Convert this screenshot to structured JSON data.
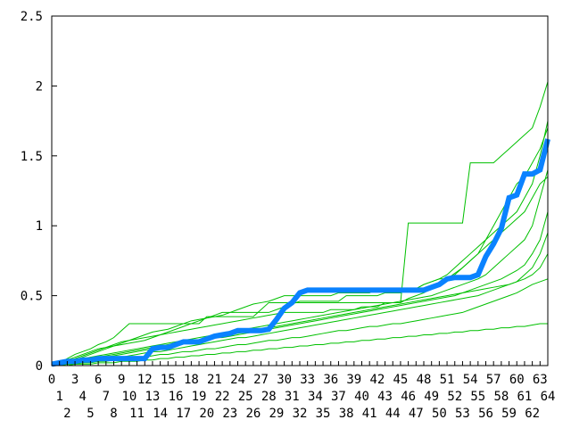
{
  "chart_data": {
    "type": "line",
    "title": "",
    "xlabel": "",
    "ylabel": "",
    "xlim": [
      0,
      64
    ],
    "ylim": [
      0,
      2.5
    ],
    "x_ticks": [
      0,
      1,
      2,
      3,
      4,
      5,
      6,
      7,
      8,
      9,
      10,
      11,
      12,
      13,
      14,
      15,
      16,
      17,
      18,
      19,
      20,
      21,
      22,
      23,
      24,
      25,
      26,
      27,
      28,
      29,
      30,
      31,
      32,
      33,
      34,
      35,
      36,
      37,
      38,
      39,
      40,
      41,
      42,
      43,
      44,
      45,
      46,
      47,
      48,
      49,
      50,
      51,
      52,
      53,
      54,
      55,
      56,
      57,
      58,
      59,
      60,
      61,
      62,
      63,
      64
    ],
    "y_ticks": [
      "0",
      "0.5",
      "1",
      "1.5",
      "2",
      "2.5"
    ],
    "y_tick_values": [
      0,
      0.5,
      1,
      1.5,
      2,
      2.5
    ],
    "grid": false,
    "legend": "none",
    "colors": {
      "background_series": "#00c000",
      "highlight_series": "#0a82ff",
      "axis": "#000000"
    },
    "highlight_series": {
      "values": [
        0.01,
        0.02,
        0.03,
        0.03,
        0.04,
        0.04,
        0.05,
        0.05,
        0.05,
        0.05,
        0.05,
        0.05,
        0.05,
        0.12,
        0.13,
        0.13,
        0.15,
        0.17,
        0.17,
        0.17,
        0.19,
        0.21,
        0.22,
        0.23,
        0.25,
        0.25,
        0.25,
        0.25,
        0.26,
        0.33,
        0.41,
        0.45,
        0.52,
        0.54,
        0.54,
        0.54,
        0.54,
        0.54,
        0.54,
        0.54,
        0.54,
        0.54,
        0.54,
        0.54,
        0.54,
        0.54,
        0.54,
        0.54,
        0.54,
        0.56,
        0.58,
        0.62,
        0.63,
        0.63,
        0.63,
        0.65,
        0.78,
        0.87,
        0.98,
        1.2,
        1.22,
        1.37,
        1.37,
        1.4,
        1.62
      ]
    },
    "series": [
      {
        "values": [
          0,
          0.02,
          0.05,
          0.08,
          0.1,
          0.12,
          0.15,
          0.17,
          0.2,
          0.25,
          0.3,
          0.3,
          0.3,
          0.3,
          0.3,
          0.3,
          0.3,
          0.3,
          0.3,
          0.3,
          0.35,
          0.35,
          0.35,
          0.35,
          0.35,
          0.35,
          0.35,
          0.4,
          0.45,
          0.45,
          0.45,
          0.45,
          0.45,
          0.45,
          0.45,
          0.45,
          0.45,
          0.45,
          0.45,
          0.45,
          0.45,
          0.45,
          0.45,
          0.45,
          0.45,
          0.45,
          1.02,
          1.02,
          1.02,
          1.02,
          1.02,
          1.02,
          1.02,
          1.02,
          1.45,
          1.45,
          1.45,
          1.45,
          1.5,
          1.55,
          1.6,
          1.65,
          1.7,
          1.85,
          2.03
        ]
      },
      {
        "values": [
          0,
          0.01,
          0.02,
          0.04,
          0.06,
          0.08,
          0.1,
          0.12,
          0.14,
          0.16,
          0.18,
          0.2,
          0.22,
          0.24,
          0.25,
          0.26,
          0.28,
          0.3,
          0.32,
          0.33,
          0.34,
          0.35,
          0.36,
          0.38,
          0.4,
          0.42,
          0.44,
          0.45,
          0.46,
          0.48,
          0.5,
          0.5,
          0.5,
          0.5,
          0.5,
          0.5,
          0.5,
          0.52,
          0.52,
          0.52,
          0.52,
          0.52,
          0.55,
          0.55,
          0.55,
          0.55,
          0.55,
          0.55,
          0.58,
          0.6,
          0.62,
          0.62,
          0.65,
          0.7,
          0.75,
          0.8,
          0.9,
          0.95,
          1.0,
          1.05,
          1.1,
          1.2,
          1.3,
          1.5,
          1.75
        ]
      },
      {
        "values": [
          0,
          0.01,
          0.02,
          0.03,
          0.05,
          0.06,
          0.07,
          0.08,
          0.09,
          0.1,
          0.11,
          0.12,
          0.13,
          0.14,
          0.15,
          0.16,
          0.17,
          0.18,
          0.19,
          0.2,
          0.21,
          0.22,
          0.23,
          0.24,
          0.25,
          0.26,
          0.27,
          0.28,
          0.29,
          0.3,
          0.31,
          0.32,
          0.33,
          0.34,
          0.35,
          0.36,
          0.37,
          0.38,
          0.39,
          0.4,
          0.41,
          0.42,
          0.43,
          0.44,
          0.45,
          0.46,
          0.47,
          0.48,
          0.49,
          0.5,
          0.52,
          0.54,
          0.56,
          0.58,
          0.6,
          0.62,
          0.65,
          0.7,
          0.75,
          0.8,
          0.85,
          0.9,
          1.0,
          1.2,
          1.4
        ]
      },
      {
        "values": [
          0,
          0,
          0.01,
          0.02,
          0.03,
          0.04,
          0.05,
          0.06,
          0.07,
          0.08,
          0.09,
          0.1,
          0.11,
          0.12,
          0.13,
          0.14,
          0.15,
          0.16,
          0.17,
          0.18,
          0.19,
          0.2,
          0.2,
          0.21,
          0.22,
          0.23,
          0.24,
          0.25,
          0.26,
          0.27,
          0.28,
          0.29,
          0.3,
          0.31,
          0.32,
          0.33,
          0.34,
          0.35,
          0.36,
          0.37,
          0.38,
          0.39,
          0.4,
          0.41,
          0.42,
          0.43,
          0.44,
          0.45,
          0.46,
          0.47,
          0.48,
          0.49,
          0.5,
          0.52,
          0.54,
          0.56,
          0.58,
          0.6,
          0.62,
          0.65,
          0.68,
          0.72,
          0.8,
          0.9,
          1.1
        ]
      },
      {
        "values": [
          0,
          0.01,
          0.01,
          0.02,
          0.02,
          0.03,
          0.03,
          0.04,
          0.05,
          0.06,
          0.07,
          0.08,
          0.09,
          0.1,
          0.1,
          0.11,
          0.12,
          0.13,
          0.14,
          0.15,
          0.16,
          0.17,
          0.18,
          0.19,
          0.2,
          0.2,
          0.21,
          0.22,
          0.23,
          0.24,
          0.25,
          0.26,
          0.27,
          0.28,
          0.29,
          0.3,
          0.31,
          0.32,
          0.33,
          0.34,
          0.35,
          0.36,
          0.37,
          0.38,
          0.39,
          0.4,
          0.41,
          0.42,
          0.43,
          0.44,
          0.45,
          0.46,
          0.47,
          0.48,
          0.49,
          0.5,
          0.52,
          0.54,
          0.56,
          0.58,
          0.6,
          0.62,
          0.65,
          0.7,
          0.8
        ]
      },
      {
        "values": [
          0,
          0,
          0.01,
          0.01,
          0.02,
          0.02,
          0.03,
          0.03,
          0.04,
          0.04,
          0.05,
          0.05,
          0.06,
          0.07,
          0.08,
          0.08,
          0.09,
          0.1,
          0.1,
          0.11,
          0.12,
          0.12,
          0.13,
          0.14,
          0.15,
          0.15,
          0.16,
          0.17,
          0.18,
          0.18,
          0.19,
          0.2,
          0.2,
          0.21,
          0.22,
          0.23,
          0.24,
          0.25,
          0.25,
          0.26,
          0.27,
          0.28,
          0.28,
          0.29,
          0.3,
          0.3,
          0.31,
          0.32,
          0.33,
          0.34,
          0.35,
          0.36,
          0.37,
          0.38,
          0.4,
          0.42,
          0.44,
          0.46,
          0.48,
          0.5,
          0.52,
          0.55,
          0.58,
          0.6,
          0.62
        ]
      },
      {
        "values": [
          0,
          0.02,
          0.04,
          0.06,
          0.08,
          0.1,
          0.12,
          0.13,
          0.14,
          0.15,
          0.16,
          0.17,
          0.18,
          0.2,
          0.22,
          0.24,
          0.26,
          0.28,
          0.3,
          0.32,
          0.34,
          0.36,
          0.38,
          0.38,
          0.38,
          0.38,
          0.38,
          0.38,
          0.38,
          0.4,
          0.42,
          0.44,
          0.46,
          0.46,
          0.46,
          0.46,
          0.46,
          0.46,
          0.5,
          0.5,
          0.5,
          0.5,
          0.5,
          0.52,
          0.52,
          0.52,
          0.55,
          0.55,
          0.58,
          0.6,
          0.62,
          0.65,
          0.7,
          0.75,
          0.8,
          0.85,
          0.9,
          1.0,
          1.1,
          1.2,
          1.3,
          1.35,
          1.45,
          1.55,
          1.7
        ]
      },
      {
        "values": [
          0,
          0,
          0,
          0.01,
          0.01,
          0.01,
          0.02,
          0.02,
          0.02,
          0.03,
          0.03,
          0.03,
          0.04,
          0.04,
          0.05,
          0.05,
          0.06,
          0.06,
          0.07,
          0.07,
          0.08,
          0.08,
          0.09,
          0.09,
          0.1,
          0.1,
          0.11,
          0.11,
          0.12,
          0.12,
          0.13,
          0.13,
          0.14,
          0.14,
          0.15,
          0.15,
          0.16,
          0.16,
          0.17,
          0.17,
          0.18,
          0.18,
          0.19,
          0.19,
          0.2,
          0.2,
          0.21,
          0.21,
          0.22,
          0.22,
          0.23,
          0.23,
          0.24,
          0.24,
          0.25,
          0.25,
          0.26,
          0.26,
          0.27,
          0.27,
          0.28,
          0.28,
          0.29,
          0.3,
          0.3
        ]
      },
      {
        "values": [
          0,
          0.01,
          0.03,
          0.05,
          0.07,
          0.09,
          0.11,
          0.13,
          0.15,
          0.17,
          0.18,
          0.19,
          0.2,
          0.21,
          0.22,
          0.23,
          0.24,
          0.25,
          0.26,
          0.27,
          0.28,
          0.29,
          0.3,
          0.31,
          0.32,
          0.33,
          0.34,
          0.35,
          0.36,
          0.37,
          0.38,
          0.38,
          0.38,
          0.38,
          0.38,
          0.38,
          0.4,
          0.4,
          0.4,
          0.4,
          0.42,
          0.42,
          0.42,
          0.45,
          0.45,
          0.45,
          0.48,
          0.5,
          0.52,
          0.55,
          0.58,
          0.62,
          0.66,
          0.7,
          0.75,
          0.8,
          0.85,
          0.9,
          0.95,
          1.0,
          1.05,
          1.1,
          1.2,
          1.3,
          1.35
        ]
      },
      {
        "values": [
          0,
          0.01,
          0.02,
          0.03,
          0.04,
          0.05,
          0.06,
          0.07,
          0.08,
          0.09,
          0.1,
          0.11,
          0.12,
          0.13,
          0.14,
          0.15,
          0.16,
          0.16,
          0.17,
          0.18,
          0.19,
          0.2,
          0.21,
          0.22,
          0.23,
          0.24,
          0.25,
          0.26,
          0.27,
          0.28,
          0.29,
          0.3,
          0.31,
          0.32,
          0.33,
          0.34,
          0.35,
          0.36,
          0.37,
          0.38,
          0.39,
          0.4,
          0.41,
          0.42,
          0.43,
          0.44,
          0.45,
          0.46,
          0.47,
          0.48,
          0.49,
          0.5,
          0.51,
          0.52,
          0.53,
          0.54,
          0.55,
          0.56,
          0.57,
          0.58,
          0.6,
          0.65,
          0.7,
          0.8,
          0.95
        ]
      }
    ]
  }
}
